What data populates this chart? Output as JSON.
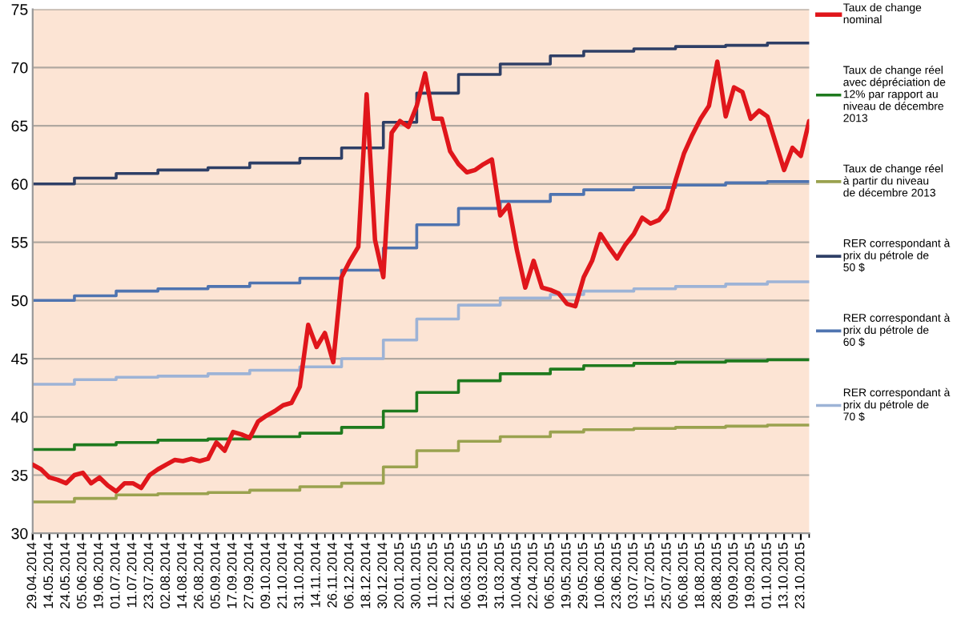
{
  "chart_data": {
    "type": "line",
    "categories": [
      "29.04.2014",
      null,
      "14.05.2014",
      null,
      "24.05.2014",
      null,
      "05.06.2014",
      null,
      "19.06.2014",
      null,
      "01.07.2014",
      null,
      "11.07.2014",
      null,
      "23.07.2014",
      null,
      "02.08.2014",
      null,
      "14.08.2014",
      null,
      "26.08.2014",
      null,
      "05.09.2014",
      null,
      "17.09.2014",
      null,
      "27.09.2014",
      null,
      "09.10.2014",
      null,
      "21.10.2014",
      null,
      "31.10.2014",
      null,
      "14.11.2014",
      null,
      "26.11.2014",
      null,
      "06.12.2014",
      null,
      "18.12.2014",
      null,
      "30.12.2014",
      null,
      "20.01.2015",
      null,
      "30.01.2015",
      null,
      "11.02.2015",
      null,
      "21.02.2015",
      null,
      "06.03.2015",
      null,
      "19.03.2015",
      null,
      "31.03.2015",
      null,
      "10.04.2015",
      null,
      "22.04.2015",
      null,
      "06.05.2015",
      null,
      "19.05.2015",
      null,
      "29.05.2015",
      null,
      "10.06.2015",
      null,
      "23.06.2015",
      null,
      "03.07.2015",
      null,
      "15.07.2015",
      null,
      "25.07.2015",
      null,
      "06.08.2015",
      null,
      "18.08.2015",
      null,
      "28.08.2015",
      null,
      "09.09.2015",
      null,
      "19.09.2015",
      null,
      "01.10.2015",
      null,
      "13.10.2015",
      null,
      "23.10.2015",
      null
    ],
    "ylim": [
      30,
      75
    ],
    "yticks": [
      30,
      35,
      40,
      45,
      50,
      55,
      60,
      65,
      70,
      75
    ],
    "grid": "y",
    "legend": "right",
    "series": [
      {
        "name": "Taux de change nominal",
        "color": "#e0161b",
        "values": [
          35.9,
          35.5,
          34.8,
          34.6,
          34.3,
          35.0,
          35.2,
          34.3,
          34.8,
          34.1,
          33.6,
          34.3,
          34.3,
          33.9,
          35.0,
          35.5,
          35.9,
          36.3,
          36.2,
          36.4,
          36.2,
          36.4,
          37.8,
          37.1,
          38.7,
          38.5,
          38.2,
          39.6,
          40.1,
          40.5,
          41.0,
          41.2,
          42.6,
          47.9,
          46.0,
          47.2,
          44.7,
          52.0,
          53.4,
          54.6,
          67.7,
          55.2,
          52.0,
          64.4,
          65.4,
          64.9,
          66.7,
          69.5,
          65.6,
          65.6,
          62.8,
          61.7,
          61.0,
          61.2,
          61.7,
          62.1,
          57.3,
          58.2,
          54.3,
          51.1,
          53.4,
          51.1,
          50.9,
          50.6,
          49.7,
          49.5,
          52.0,
          53.4,
          55.7,
          54.6,
          53.6,
          54.8,
          55.7,
          57.1,
          56.6,
          56.9,
          57.8,
          60.3,
          62.6,
          64.2,
          65.6,
          66.7,
          70.5,
          65.8,
          68.3,
          67.9,
          65.6,
          66.3,
          65.8,
          63.5,
          61.2,
          63.1,
          62.4,
          65.4
        ]
      },
      {
        "name": "Taux de change réel avec dépréciation de 12% par rapport au niveau de décembre 2013",
        "color": "#1e7a1e",
        "type": "step",
        "values": [
          37.2,
          37.2,
          37.2,
          37.2,
          37.2,
          37.6,
          37.6,
          37.6,
          37.6,
          37.6,
          37.8,
          37.8,
          37.8,
          37.8,
          37.8,
          38.0,
          38.0,
          38.0,
          38.0,
          38.0,
          38.0,
          38.1,
          38.1,
          38.1,
          38.1,
          38.1,
          38.3,
          38.3,
          38.3,
          38.3,
          38.3,
          38.3,
          38.6,
          38.6,
          38.6,
          38.6,
          38.6,
          39.1,
          39.1,
          39.1,
          39.1,
          39.1,
          40.5,
          40.5,
          40.5,
          40.5,
          42.1,
          42.1,
          42.1,
          42.1,
          42.1,
          43.1,
          43.1,
          43.1,
          43.1,
          43.1,
          43.7,
          43.7,
          43.7,
          43.7,
          43.7,
          43.7,
          44.1,
          44.1,
          44.1,
          44.1,
          44.4,
          44.4,
          44.4,
          44.4,
          44.4,
          44.4,
          44.6,
          44.6,
          44.6,
          44.6,
          44.6,
          44.7,
          44.7,
          44.7,
          44.7,
          44.7,
          44.7,
          44.8,
          44.8,
          44.8,
          44.8,
          44.8,
          44.9,
          44.9,
          44.9,
          44.9,
          44.9,
          44.9
        ]
      },
      {
        "name": "Taux de change réel à partir du niveau de décembre 2013",
        "color": "#9aa24f",
        "type": "step",
        "values": [
          32.7,
          32.7,
          32.7,
          32.7,
          32.7,
          33.0,
          33.0,
          33.0,
          33.0,
          33.0,
          33.3,
          33.3,
          33.3,
          33.3,
          33.3,
          33.4,
          33.4,
          33.4,
          33.4,
          33.4,
          33.4,
          33.5,
          33.5,
          33.5,
          33.5,
          33.5,
          33.7,
          33.7,
          33.7,
          33.7,
          33.7,
          33.7,
          34.0,
          34.0,
          34.0,
          34.0,
          34.0,
          34.3,
          34.3,
          34.3,
          34.3,
          34.3,
          35.7,
          35.7,
          35.7,
          35.7,
          37.1,
          37.1,
          37.1,
          37.1,
          37.1,
          37.9,
          37.9,
          37.9,
          37.9,
          37.9,
          38.3,
          38.3,
          38.3,
          38.3,
          38.3,
          38.3,
          38.7,
          38.7,
          38.7,
          38.7,
          38.9,
          38.9,
          38.9,
          38.9,
          38.9,
          38.9,
          39.0,
          39.0,
          39.0,
          39.0,
          39.0,
          39.1,
          39.1,
          39.1,
          39.1,
          39.1,
          39.1,
          39.2,
          39.2,
          39.2,
          39.2,
          39.2,
          39.3,
          39.3,
          39.3,
          39.3,
          39.3,
          39.3
        ]
      },
      {
        "name": "RER correspondant à prix du pétrole de 50 $",
        "color": "#2e3f66",
        "type": "step",
        "values": [
          60.0,
          60.0,
          60.0,
          60.0,
          60.0,
          60.5,
          60.5,
          60.5,
          60.5,
          60.5,
          60.9,
          60.9,
          60.9,
          60.9,
          60.9,
          61.2,
          61.2,
          61.2,
          61.2,
          61.2,
          61.2,
          61.4,
          61.4,
          61.4,
          61.4,
          61.4,
          61.8,
          61.8,
          61.8,
          61.8,
          61.8,
          61.8,
          62.2,
          62.2,
          62.2,
          62.2,
          62.2,
          63.1,
          63.1,
          63.1,
          63.1,
          63.1,
          65.3,
          65.3,
          65.3,
          65.3,
          67.8,
          67.8,
          67.8,
          67.8,
          67.8,
          69.4,
          69.4,
          69.4,
          69.4,
          69.4,
          70.3,
          70.3,
          70.3,
          70.3,
          70.3,
          70.3,
          71.0,
          71.0,
          71.0,
          71.0,
          71.4,
          71.4,
          71.4,
          71.4,
          71.4,
          71.4,
          71.6,
          71.6,
          71.6,
          71.6,
          71.6,
          71.8,
          71.8,
          71.8,
          71.8,
          71.8,
          71.8,
          71.9,
          71.9,
          71.9,
          71.9,
          71.9,
          72.1,
          72.1,
          72.1,
          72.1,
          72.1,
          72.1
        ]
      },
      {
        "name": "RER correspondant à prix du pétrole de 60 $",
        "color": "#4f74b0",
        "type": "step",
        "values": [
          50.0,
          50.0,
          50.0,
          50.0,
          50.0,
          50.4,
          50.4,
          50.4,
          50.4,
          50.4,
          50.8,
          50.8,
          50.8,
          50.8,
          50.8,
          51.0,
          51.0,
          51.0,
          51.0,
          51.0,
          51.0,
          51.2,
          51.2,
          51.2,
          51.2,
          51.2,
          51.5,
          51.5,
          51.5,
          51.5,
          51.5,
          51.5,
          51.9,
          51.9,
          51.9,
          51.9,
          51.9,
          52.6,
          52.6,
          52.6,
          52.6,
          52.6,
          54.5,
          54.5,
          54.5,
          54.5,
          56.5,
          56.5,
          56.5,
          56.5,
          56.5,
          57.9,
          57.9,
          57.9,
          57.9,
          57.9,
          58.5,
          58.5,
          58.5,
          58.5,
          58.5,
          58.5,
          59.1,
          59.1,
          59.1,
          59.1,
          59.5,
          59.5,
          59.5,
          59.5,
          59.5,
          59.5,
          59.7,
          59.7,
          59.7,
          59.7,
          59.7,
          59.9,
          59.9,
          59.9,
          59.9,
          59.9,
          59.9,
          60.1,
          60.1,
          60.1,
          60.1,
          60.1,
          60.2,
          60.2,
          60.2,
          60.2,
          60.2,
          60.2
        ]
      },
      {
        "name": "RER correspondant à prix du pétrole de 70 $",
        "color": "#9db3d6",
        "type": "step",
        "values": [
          42.8,
          42.8,
          42.8,
          42.8,
          42.8,
          43.2,
          43.2,
          43.2,
          43.2,
          43.2,
          43.4,
          43.4,
          43.4,
          43.4,
          43.4,
          43.5,
          43.5,
          43.5,
          43.5,
          43.5,
          43.5,
          43.7,
          43.7,
          43.7,
          43.7,
          43.7,
          44.0,
          44.0,
          44.0,
          44.0,
          44.0,
          44.0,
          44.3,
          44.3,
          44.3,
          44.3,
          44.3,
          45.0,
          45.0,
          45.0,
          45.0,
          45.0,
          46.6,
          46.6,
          46.6,
          46.6,
          48.4,
          48.4,
          48.4,
          48.4,
          48.4,
          49.6,
          49.6,
          49.6,
          49.6,
          49.6,
          50.2,
          50.2,
          50.2,
          50.2,
          50.2,
          50.2,
          50.5,
          50.5,
          50.5,
          50.5,
          50.8,
          50.8,
          50.8,
          50.8,
          50.8,
          50.8,
          51.0,
          51.0,
          51.0,
          51.0,
          51.0,
          51.2,
          51.2,
          51.2,
          51.2,
          51.2,
          51.2,
          51.4,
          51.4,
          51.4,
          51.4,
          51.4,
          51.6,
          51.6,
          51.6,
          51.6,
          51.6,
          51.6
        ]
      }
    ]
  }
}
